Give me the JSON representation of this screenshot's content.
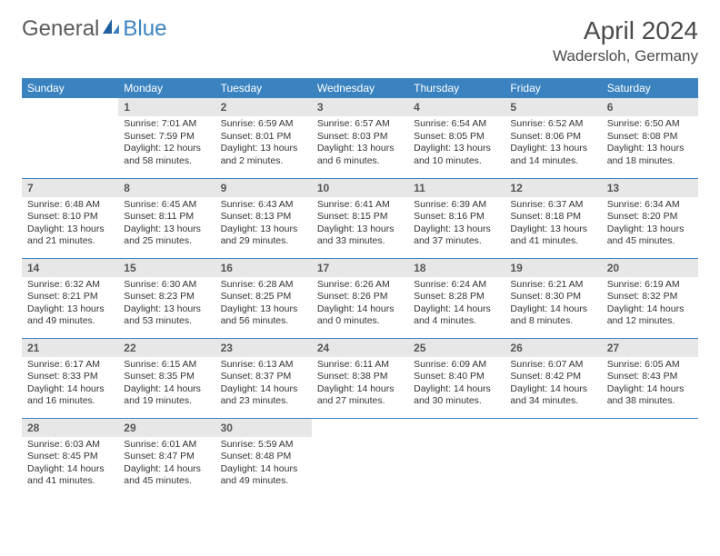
{
  "brand": {
    "part1": "General",
    "part2": "Blue"
  },
  "title": "April 2024",
  "location": "Wadersloh, Germany",
  "colors": {
    "header_bg": "#3b83c0",
    "header_text": "#ffffff",
    "daynum_bg": "#e7e7e7",
    "daynum_text": "#555555",
    "body_text": "#333333",
    "border": "#3b83c0",
    "logo_gray": "#5a5a5a",
    "logo_blue": "#3b83c0"
  },
  "weekdays": [
    "Sunday",
    "Monday",
    "Tuesday",
    "Wednesday",
    "Thursday",
    "Friday",
    "Saturday"
  ],
  "weeks": [
    [
      null,
      {
        "n": "1",
        "sr": "7:01 AM",
        "ss": "7:59 PM",
        "dl": "12 hours and 58 minutes."
      },
      {
        "n": "2",
        "sr": "6:59 AM",
        "ss": "8:01 PM",
        "dl": "13 hours and 2 minutes."
      },
      {
        "n": "3",
        "sr": "6:57 AM",
        "ss": "8:03 PM",
        "dl": "13 hours and 6 minutes."
      },
      {
        "n": "4",
        "sr": "6:54 AM",
        "ss": "8:05 PM",
        "dl": "13 hours and 10 minutes."
      },
      {
        "n": "5",
        "sr": "6:52 AM",
        "ss": "8:06 PM",
        "dl": "13 hours and 14 minutes."
      },
      {
        "n": "6",
        "sr": "6:50 AM",
        "ss": "8:08 PM",
        "dl": "13 hours and 18 minutes."
      }
    ],
    [
      {
        "n": "7",
        "sr": "6:48 AM",
        "ss": "8:10 PM",
        "dl": "13 hours and 21 minutes."
      },
      {
        "n": "8",
        "sr": "6:45 AM",
        "ss": "8:11 PM",
        "dl": "13 hours and 25 minutes."
      },
      {
        "n": "9",
        "sr": "6:43 AM",
        "ss": "8:13 PM",
        "dl": "13 hours and 29 minutes."
      },
      {
        "n": "10",
        "sr": "6:41 AM",
        "ss": "8:15 PM",
        "dl": "13 hours and 33 minutes."
      },
      {
        "n": "11",
        "sr": "6:39 AM",
        "ss": "8:16 PM",
        "dl": "13 hours and 37 minutes."
      },
      {
        "n": "12",
        "sr": "6:37 AM",
        "ss": "8:18 PM",
        "dl": "13 hours and 41 minutes."
      },
      {
        "n": "13",
        "sr": "6:34 AM",
        "ss": "8:20 PM",
        "dl": "13 hours and 45 minutes."
      }
    ],
    [
      {
        "n": "14",
        "sr": "6:32 AM",
        "ss": "8:21 PM",
        "dl": "13 hours and 49 minutes."
      },
      {
        "n": "15",
        "sr": "6:30 AM",
        "ss": "8:23 PM",
        "dl": "13 hours and 53 minutes."
      },
      {
        "n": "16",
        "sr": "6:28 AM",
        "ss": "8:25 PM",
        "dl": "13 hours and 56 minutes."
      },
      {
        "n": "17",
        "sr": "6:26 AM",
        "ss": "8:26 PM",
        "dl": "14 hours and 0 minutes."
      },
      {
        "n": "18",
        "sr": "6:24 AM",
        "ss": "8:28 PM",
        "dl": "14 hours and 4 minutes."
      },
      {
        "n": "19",
        "sr": "6:21 AM",
        "ss": "8:30 PM",
        "dl": "14 hours and 8 minutes."
      },
      {
        "n": "20",
        "sr": "6:19 AM",
        "ss": "8:32 PM",
        "dl": "14 hours and 12 minutes."
      }
    ],
    [
      {
        "n": "21",
        "sr": "6:17 AM",
        "ss": "8:33 PM",
        "dl": "14 hours and 16 minutes."
      },
      {
        "n": "22",
        "sr": "6:15 AM",
        "ss": "8:35 PM",
        "dl": "14 hours and 19 minutes."
      },
      {
        "n": "23",
        "sr": "6:13 AM",
        "ss": "8:37 PM",
        "dl": "14 hours and 23 minutes."
      },
      {
        "n": "24",
        "sr": "6:11 AM",
        "ss": "8:38 PM",
        "dl": "14 hours and 27 minutes."
      },
      {
        "n": "25",
        "sr": "6:09 AM",
        "ss": "8:40 PM",
        "dl": "14 hours and 30 minutes."
      },
      {
        "n": "26",
        "sr": "6:07 AM",
        "ss": "8:42 PM",
        "dl": "14 hours and 34 minutes."
      },
      {
        "n": "27",
        "sr": "6:05 AM",
        "ss": "8:43 PM",
        "dl": "14 hours and 38 minutes."
      }
    ],
    [
      {
        "n": "28",
        "sr": "6:03 AM",
        "ss": "8:45 PM",
        "dl": "14 hours and 41 minutes."
      },
      {
        "n": "29",
        "sr": "6:01 AM",
        "ss": "8:47 PM",
        "dl": "14 hours and 45 minutes."
      },
      {
        "n": "30",
        "sr": "5:59 AM",
        "ss": "8:48 PM",
        "dl": "14 hours and 49 minutes."
      },
      null,
      null,
      null,
      null
    ]
  ],
  "labels": {
    "sunrise": "Sunrise:",
    "sunset": "Sunset:",
    "daylight": "Daylight:"
  }
}
